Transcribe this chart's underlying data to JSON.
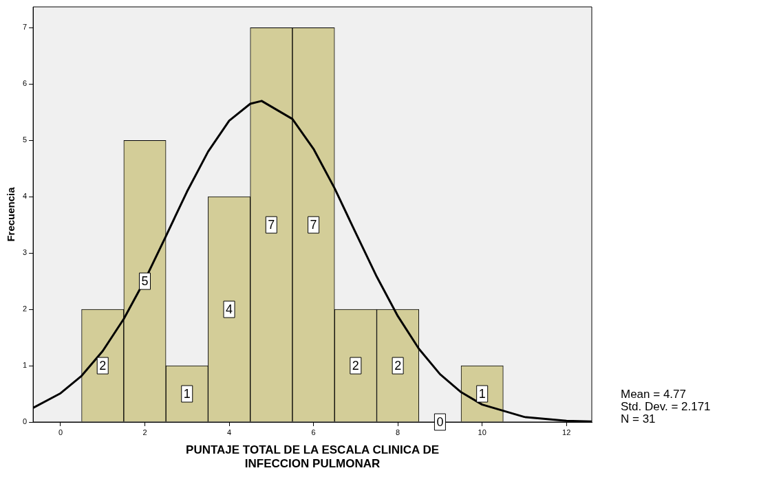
{
  "chart_data": {
    "type": "histogram",
    "xlabel": "PUNTAJE TOTAL DE LA ESCALA CLINICA DE INFECCION PULMONAR",
    "ylabel": "Frecuencia",
    "bins": [
      0.5,
      1.5,
      2.5,
      3.5,
      4.5,
      5.5,
      6.5,
      7.5,
      8.5,
      9.5,
      10.5
    ],
    "values": [
      2,
      5,
      1,
      4,
      7,
      7,
      2,
      2,
      0,
      1
    ],
    "color": "#d3cd98",
    "value_labels": [
      "2",
      "5",
      "1",
      "4",
      "7",
      "7",
      "2",
      "2",
      "0",
      "1"
    ],
    "series": [
      {
        "type": "line",
        "color": "#000000",
        "x": [
          -0.65,
          0,
          0.5,
          1,
          1.5,
          2,
          2.5,
          3,
          3.5,
          4,
          4.5,
          4.77,
          5.5,
          6,
          6.5,
          7,
          7.5,
          8,
          8.5,
          9,
          9.5,
          10,
          11,
          12,
          12.6
        ],
        "values": [
          0.25,
          0.51,
          0.82,
          1.26,
          1.83,
          2.52,
          3.3,
          4.09,
          4.8,
          5.35,
          5.65,
          5.7,
          5.38,
          4.85,
          4.15,
          3.36,
          2.58,
          1.88,
          1.3,
          0.85,
          0.53,
          0.31,
          0.09,
          0.02,
          0.01
        ]
      }
    ],
    "xlim": [
      -0.65,
      12.6
    ],
    "xticks": [
      0,
      2,
      4,
      6,
      8,
      10,
      12
    ],
    "ylim": [
      0,
      7.37
    ],
    "yticks": [
      0,
      1,
      2,
      3,
      4,
      5,
      6,
      7
    ],
    "grid": false,
    "legend": false,
    "annotations": [
      "Mean = 4.77",
      "Std. Dev. = 2.171",
      "N = 31"
    ]
  }
}
